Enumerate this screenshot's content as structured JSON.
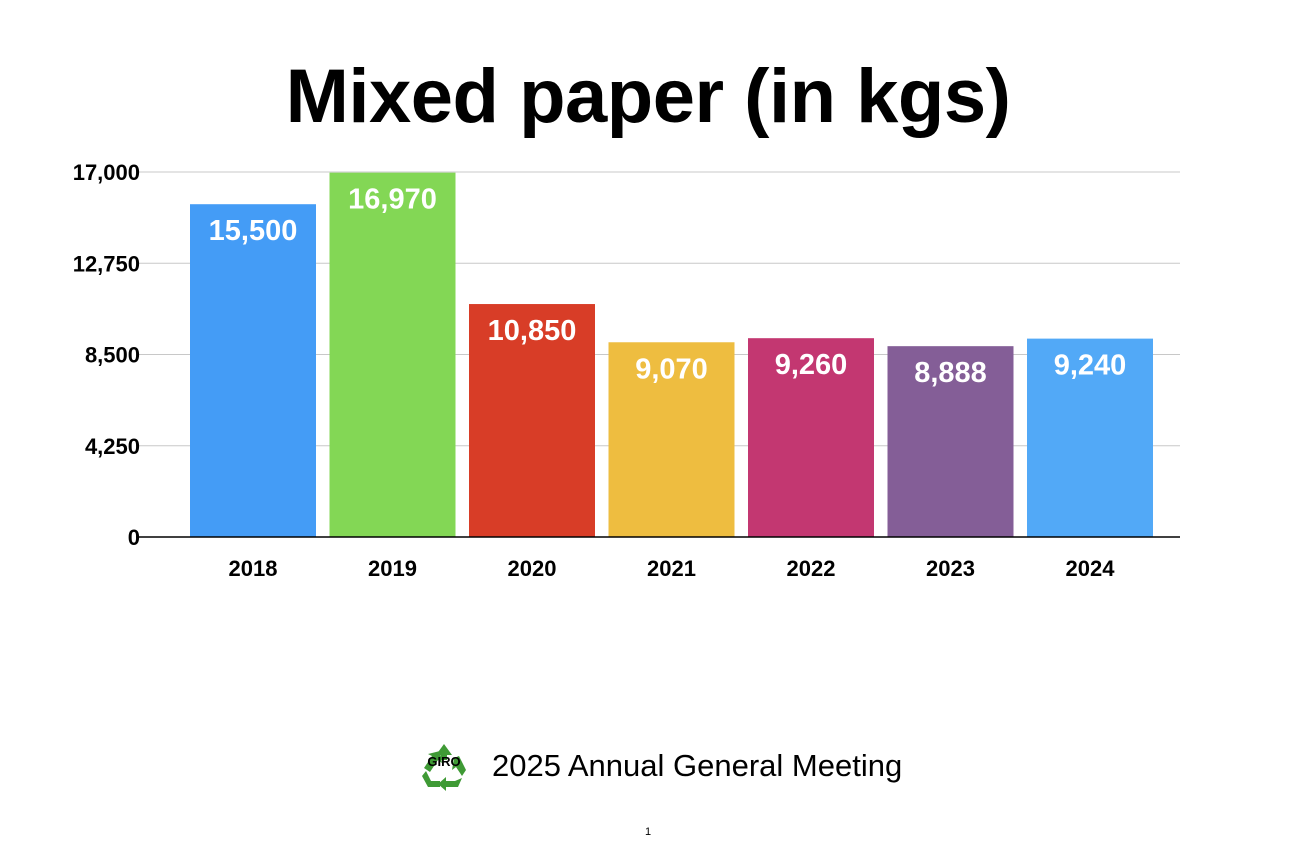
{
  "slide": {
    "footer_text": "2025 Annual General Meeting",
    "logo_text": "GIRO",
    "page_number": "1"
  },
  "chart_data": {
    "type": "bar",
    "title": "Mixed paper (in kgs)",
    "categories": [
      "2018",
      "2019",
      "2020",
      "2021",
      "2022",
      "2023",
      "2024"
    ],
    "values": [
      15500,
      16970,
      10850,
      9070,
      9260,
      8888,
      9240
    ],
    "value_labels": [
      "15,500",
      "16,970",
      "10,850",
      "9,070",
      "9,260",
      "8,888",
      "9,240"
    ],
    "colors": [
      "#449cf6",
      "#83d755",
      "#d83d27",
      "#eebd40",
      "#c33771",
      "#845e97",
      "#52a9f7"
    ],
    "ylim": [
      0,
      17000
    ],
    "yticks": [
      0,
      4250,
      8500,
      12750,
      17000
    ],
    "ytick_labels": [
      "0",
      "4,250",
      "8,500",
      "12,750",
      "17,000"
    ],
    "xlabel": "",
    "ylabel": "",
    "grid": true,
    "legend": "none"
  }
}
